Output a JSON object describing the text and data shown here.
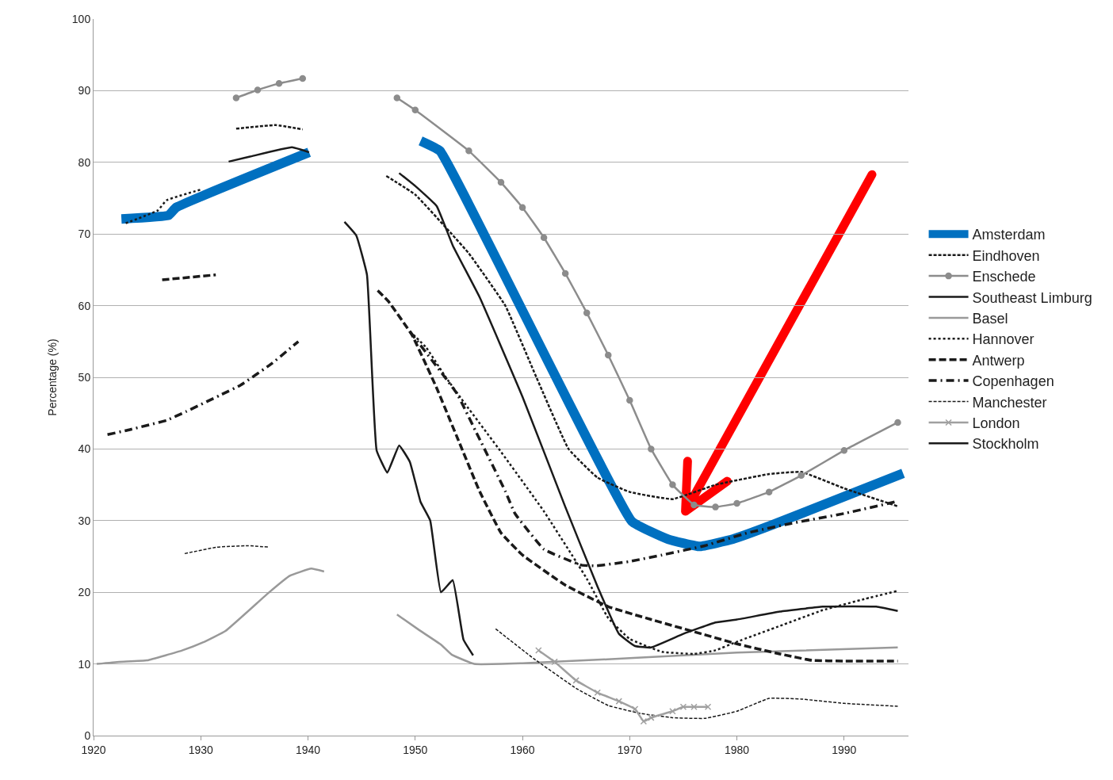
{
  "chart_data": {
    "type": "line",
    "ylabel": "Percentage (%)",
    "xlim": [
      1920,
      1996
    ],
    "ylim": [
      0,
      100
    ],
    "xticks": [
      1920,
      1930,
      1940,
      1950,
      1960,
      1970,
      1980,
      1990
    ],
    "yticks": [
      0,
      10,
      20,
      30,
      40,
      50,
      60,
      70,
      80,
      90,
      100
    ],
    "grid": "y",
    "legend": "right",
    "series": [
      {
        "name": "Amsterdam",
        "color": "#0070c0",
        "line_style": "solid",
        "x": [
          1922.6,
          1927,
          1927.7,
          1940.1,
          1945,
          1950.5,
          1952.3,
          1970.2,
          1973.6,
          1976.5,
          1979.6,
          1983.3,
          1995.5
        ],
        "values": [
          72.1,
          72.6,
          73.7,
          81.4,
          null,
          83,
          81.6,
          29.9,
          27.4,
          26.4,
          27.4,
          29.4,
          36.6
        ]
      },
      {
        "name": "Eindhoven",
        "color": "#1a1a1a",
        "line_style": "dashed",
        "x": [
          1933.3,
          1937,
          1939.5,
          1943,
          1947.3,
          1950,
          1953.4,
          1955,
          1958.4,
          1961.3,
          1964.3,
          1967,
          1970,
          1974,
          1978,
          1983,
          1986,
          1990,
          1995
        ],
        "values": [
          84.7,
          85.2,
          84.6,
          null,
          78.1,
          75.5,
          70,
          67.3,
          60,
          50,
          40,
          36,
          34,
          33,
          35,
          36.5,
          36.8,
          34.5,
          32
        ]
      },
      {
        "name": "Enschede",
        "color": "#8c8c8c",
        "line_style": "solid",
        "marker": "circle",
        "x": [
          1933.3,
          1935.3,
          1937.3,
          1939.5,
          1944,
          1948.3,
          1950,
          1955,
          1958,
          1960,
          1962,
          1964,
          1966,
          1968,
          1970,
          1972,
          1974,
          1976,
          1978,
          1980,
          1983,
          1986,
          1990,
          1995
        ],
        "values": [
          89,
          90.1,
          91,
          91.7,
          null,
          89,
          87.3,
          81.6,
          77.2,
          73.7,
          69.5,
          64.5,
          59,
          53.1,
          46.8,
          40,
          35,
          32.2,
          31.9,
          32.4,
          34,
          36.3,
          39.8,
          43.7
        ]
      },
      {
        "name": "Southeast Limburg",
        "color": "#1a1a1a",
        "line_style": "solid",
        "x": [
          1932.6,
          1934.6,
          1938.5,
          1940.1,
          1944,
          1948.5,
          1950,
          1952,
          1953.5,
          1956,
          1960,
          1964,
          1967,
          1969,
          1970.5,
          1972,
          1975,
          1978,
          1980,
          1984,
          1988,
          1993,
          1995
        ],
        "values": [
          80.1,
          80.8,
          82.1,
          81.4,
          null,
          78.5,
          76.7,
          73.9,
          68.4,
          61.2,
          47.3,
          31.9,
          20.8,
          14.2,
          12.5,
          12.3,
          14.2,
          15.8,
          16.2,
          17.3,
          18,
          18,
          17.4
        ]
      },
      {
        "name": "Basel",
        "color": "#999999",
        "line_style": "solid",
        "x": [
          1920.3,
          1922.4,
          1925,
          1928.3,
          1930.2,
          1932.3,
          1936.3,
          1938.3,
          1940.3,
          1941.5,
          1945,
          1948.3,
          1950.4,
          1952.4,
          1953.4,
          1955.5,
          1960,
          1970,
          1980,
          1995
        ],
        "values": [
          10,
          10.3,
          10.5,
          11.9,
          13,
          14.6,
          19.9,
          22.3,
          23.3,
          22.9,
          null,
          16.9,
          14.7,
          12.7,
          11.3,
          10,
          10.1,
          10.8,
          11.6,
          12.3
        ]
      },
      {
        "name": "Hannover",
        "color": "#1a1a1a",
        "line_style": "dotted",
        "x": [
          1923,
          1926,
          1926.8,
          1930,
          1940,
          1949.5,
          1951,
          1952.9,
          1954.7,
          1958,
          1962,
          1966,
          1968,
          1970,
          1973,
          1976,
          1978,
          1980,
          1984,
          1988,
          1992,
          1995
        ],
        "values": [
          71.5,
          73.3,
          74.7,
          76.2,
          null,
          56.4,
          54.2,
          49.9,
          46.2,
          39.6,
          31.3,
          21.9,
          16.4,
          13.5,
          11.7,
          11.4,
          11.9,
          13.1,
          15.3,
          17.5,
          19.1,
          20.2
        ]
      },
      {
        "name": "Antwerp",
        "color": "#1a1a1a",
        "line_style": "longdash",
        "x": [
          1926.4,
          1931.4,
          1940,
          1946.5,
          1947.5,
          1949.7,
          1952,
          1954,
          1956,
          1958,
          1960,
          1964,
          1968,
          1972,
          1976,
          1980,
          1984,
          1987,
          1990,
          1995
        ],
        "values": [
          63.6,
          64.3,
          null,
          62.1,
          60.6,
          55.9,
          48.5,
          41.3,
          34.1,
          28.3,
          25.2,
          21,
          18,
          16.2,
          14.5,
          12.8,
          11.4,
          10.5,
          10.4,
          10.4
        ]
      },
      {
        "name": "Copenhagen",
        "color": "#1a1a1a",
        "line_style": "dashdot",
        "x": [
          1921.3,
          1923.4,
          1926.8,
          1928.6,
          1931.8,
          1933.7,
          1936.6,
          1939.1,
          1944,
          1949.5,
          1953.9,
          1955.6,
          1958.4,
          1959.3,
          1962,
          1965.5,
          1966.9,
          1970,
          1973,
          1977,
          1981,
          1985,
          1990,
          1995
        ],
        "values": [
          42,
          42.7,
          44,
          45.2,
          47.5,
          48.9,
          51.9,
          55,
          null,
          56.4,
          47.7,
          42.6,
          34.1,
          31,
          26,
          23.8,
          23.7,
          24.3,
          25.2,
          26.5,
          28.3,
          29.6,
          31,
          32.7
        ]
      },
      {
        "name": "Manchester",
        "color": "#1a1a1a",
        "line_style": "dashed",
        "x": [
          1928.5,
          1931.5,
          1934.4,
          1936.4,
          1945,
          1957.5,
          1961,
          1965,
          1968,
          1971,
          1974,
          1977,
          1980,
          1983,
          1986,
          1990,
          1995
        ],
        "values": [
          25.4,
          26.3,
          26.5,
          26.3,
          null,
          14.9,
          10.8,
          6.6,
          4.2,
          3.1,
          2.5,
          2.4,
          3.4,
          5.2,
          5.1,
          4.5,
          4.1
        ]
      },
      {
        "name": "London",
        "color": "#a0a0a0",
        "line_style": "solid",
        "marker": "cross",
        "x": [
          1961.5,
          1963,
          1965,
          1967,
          1969,
          1970.5,
          1971.3,
          1972,
          1974,
          1975,
          1976,
          1977.3
        ],
        "values": [
          11.9,
          10.3,
          7.7,
          6,
          4.8,
          3.7,
          2,
          2.5,
          3.4,
          4,
          4,
          4
        ]
      },
      {
        "name": "Stockholm",
        "color": "#1a1a1a",
        "line_style": "solid",
        "x": [
          1943.4,
          1944.5,
          1945.5,
          1946.4,
          1947.4,
          1948.5,
          1949.5,
          1950.5,
          1951.4,
          1952.4,
          1953.5,
          1954.5,
          1955.4
        ],
        "values": [
          71.7,
          69.8,
          64.3,
          39.8,
          36.7,
          40.5,
          38.2,
          32.6,
          30,
          20,
          21.7,
          13.4,
          11.2
        ]
      }
    ]
  }
}
